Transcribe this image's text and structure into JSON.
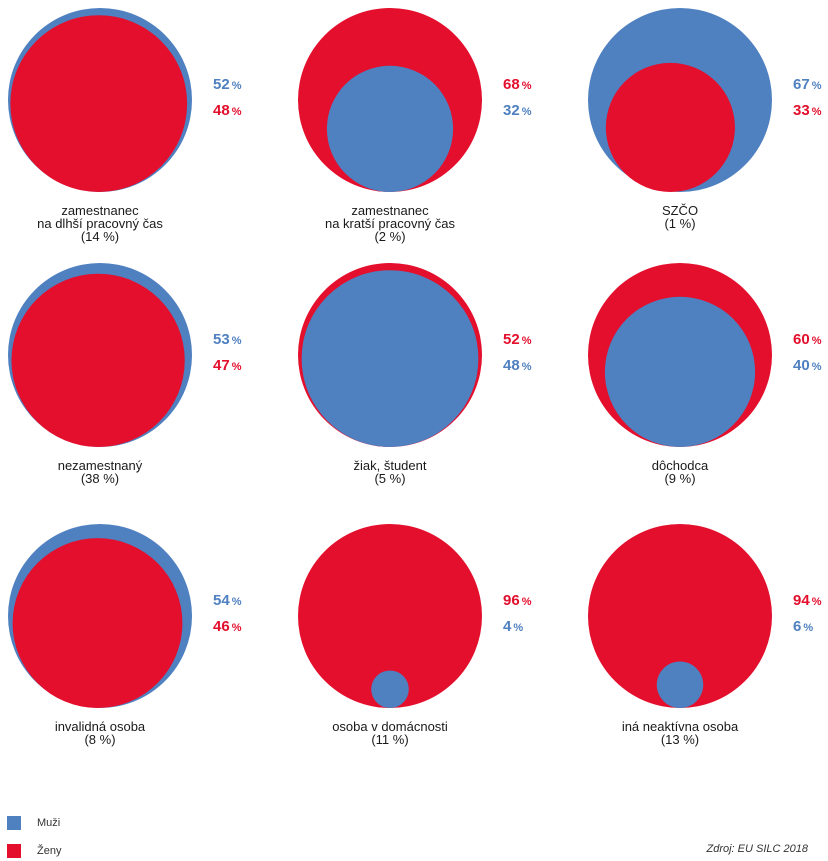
{
  "colors": {
    "muzi": "#4f80c0",
    "zeny": "#e30f2d"
  },
  "legend": [
    {
      "key": "muzi",
      "label": "Muži"
    },
    {
      "key": "zeny",
      "label": "Ženy"
    }
  ],
  "source": "Zdroj: EU SILC 2018",
  "chart_data": {
    "type": "nested-circle",
    "series": [
      {
        "name": "Muži"
      },
      {
        "name": "Ženy"
      }
    ],
    "panels": [
      {
        "label_lines": [
          "zamestnanec",
          "na dlhší pracovný čas",
          "(14 %)"
        ],
        "total_share": 14,
        "muzi": 52,
        "zeny": 48,
        "pct_top": "muzi",
        "outer": "muzi"
      },
      {
        "label_lines": [
          "zamestnanec",
          "na kratší pracovný čas",
          "(2 %)"
        ],
        "total_share": 2,
        "muzi": 32,
        "zeny": 68,
        "pct_top": "zeny",
        "outer": "zeny"
      },
      {
        "label_lines": [
          "SZČO",
          "(1 %)"
        ],
        "total_share": 1,
        "muzi": 67,
        "zeny": 33,
        "pct_top": "muzi",
        "outer": "muzi"
      },
      {
        "label_lines": [
          "nezamestnaný",
          "(38 %)"
        ],
        "total_share": 38,
        "muzi": 53,
        "zeny": 47,
        "pct_top": "muzi",
        "outer": "muzi"
      },
      {
        "label_lines": [
          "žiak, študent",
          "(5 %)"
        ],
        "total_share": 5,
        "muzi": 48,
        "zeny": 52,
        "pct_top": "zeny",
        "outer": "zeny"
      },
      {
        "label_lines": [
          "dôchodca",
          "(9 %)"
        ],
        "total_share": 9,
        "muzi": 40,
        "zeny": 60,
        "pct_top": "zeny",
        "outer": "zeny"
      },
      {
        "label_lines": [
          "invalidná osoba",
          "(8 %)"
        ],
        "total_share": 8,
        "muzi": 54,
        "zeny": 46,
        "pct_top": "muzi",
        "outer": "muzi"
      },
      {
        "label_lines": [
          "osoba v domácnosti",
          "(11 %)"
        ],
        "total_share": 11,
        "muzi": 4,
        "zeny": 96,
        "pct_top": "zeny",
        "outer": "zeny"
      },
      {
        "label_lines": [
          "iná neaktívna osoba",
          "(13 %)"
        ],
        "total_share": 13,
        "muzi": 6,
        "zeny": 94,
        "pct_top": "zeny",
        "outer": "zeny"
      }
    ]
  }
}
